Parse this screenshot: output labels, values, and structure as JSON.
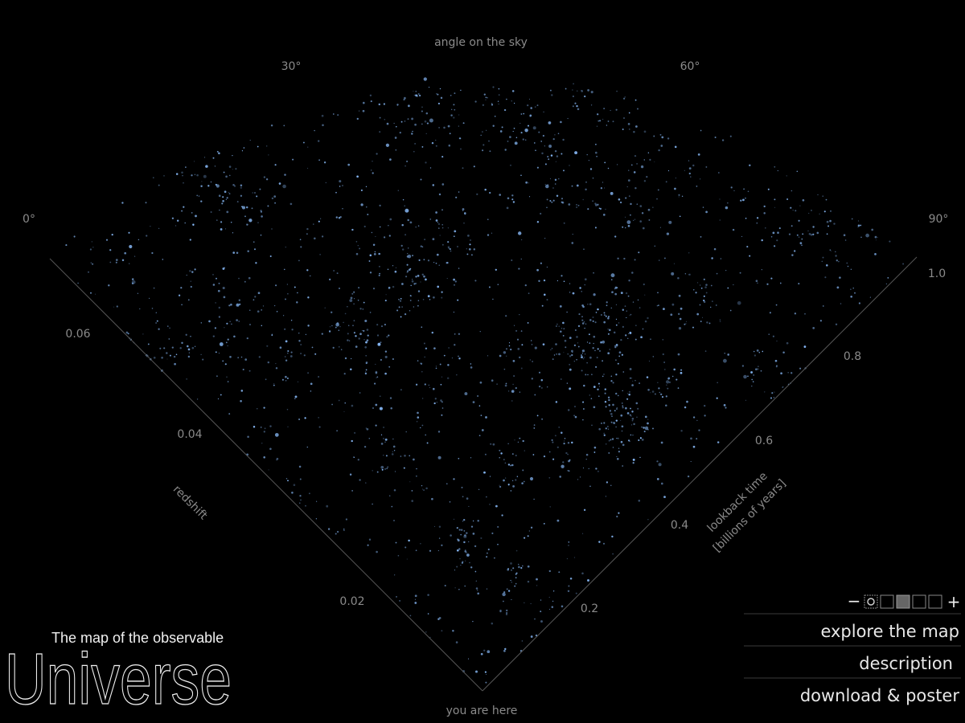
{
  "header": {
    "axis_title": "angle on the sky",
    "angle_ticks": [
      "0°",
      "30°",
      "60°",
      "90°"
    ]
  },
  "redshift": {
    "label": "redshift",
    "ticks": [
      "0.06",
      "0.04",
      "0.02"
    ]
  },
  "lookback": {
    "label_lines": [
      "lookback time",
      "[billions of years]"
    ],
    "ticks": [
      "1.0",
      "0.8",
      "0.6",
      "0.4",
      "0.2"
    ]
  },
  "origin_label": "you are here",
  "logo": {
    "subtitle": "The map of the observable",
    "title": "Universe"
  },
  "zoom": {
    "minus": "−",
    "plus": "+"
  },
  "menu": [
    "explore the map",
    "description",
    "download & poster"
  ]
}
